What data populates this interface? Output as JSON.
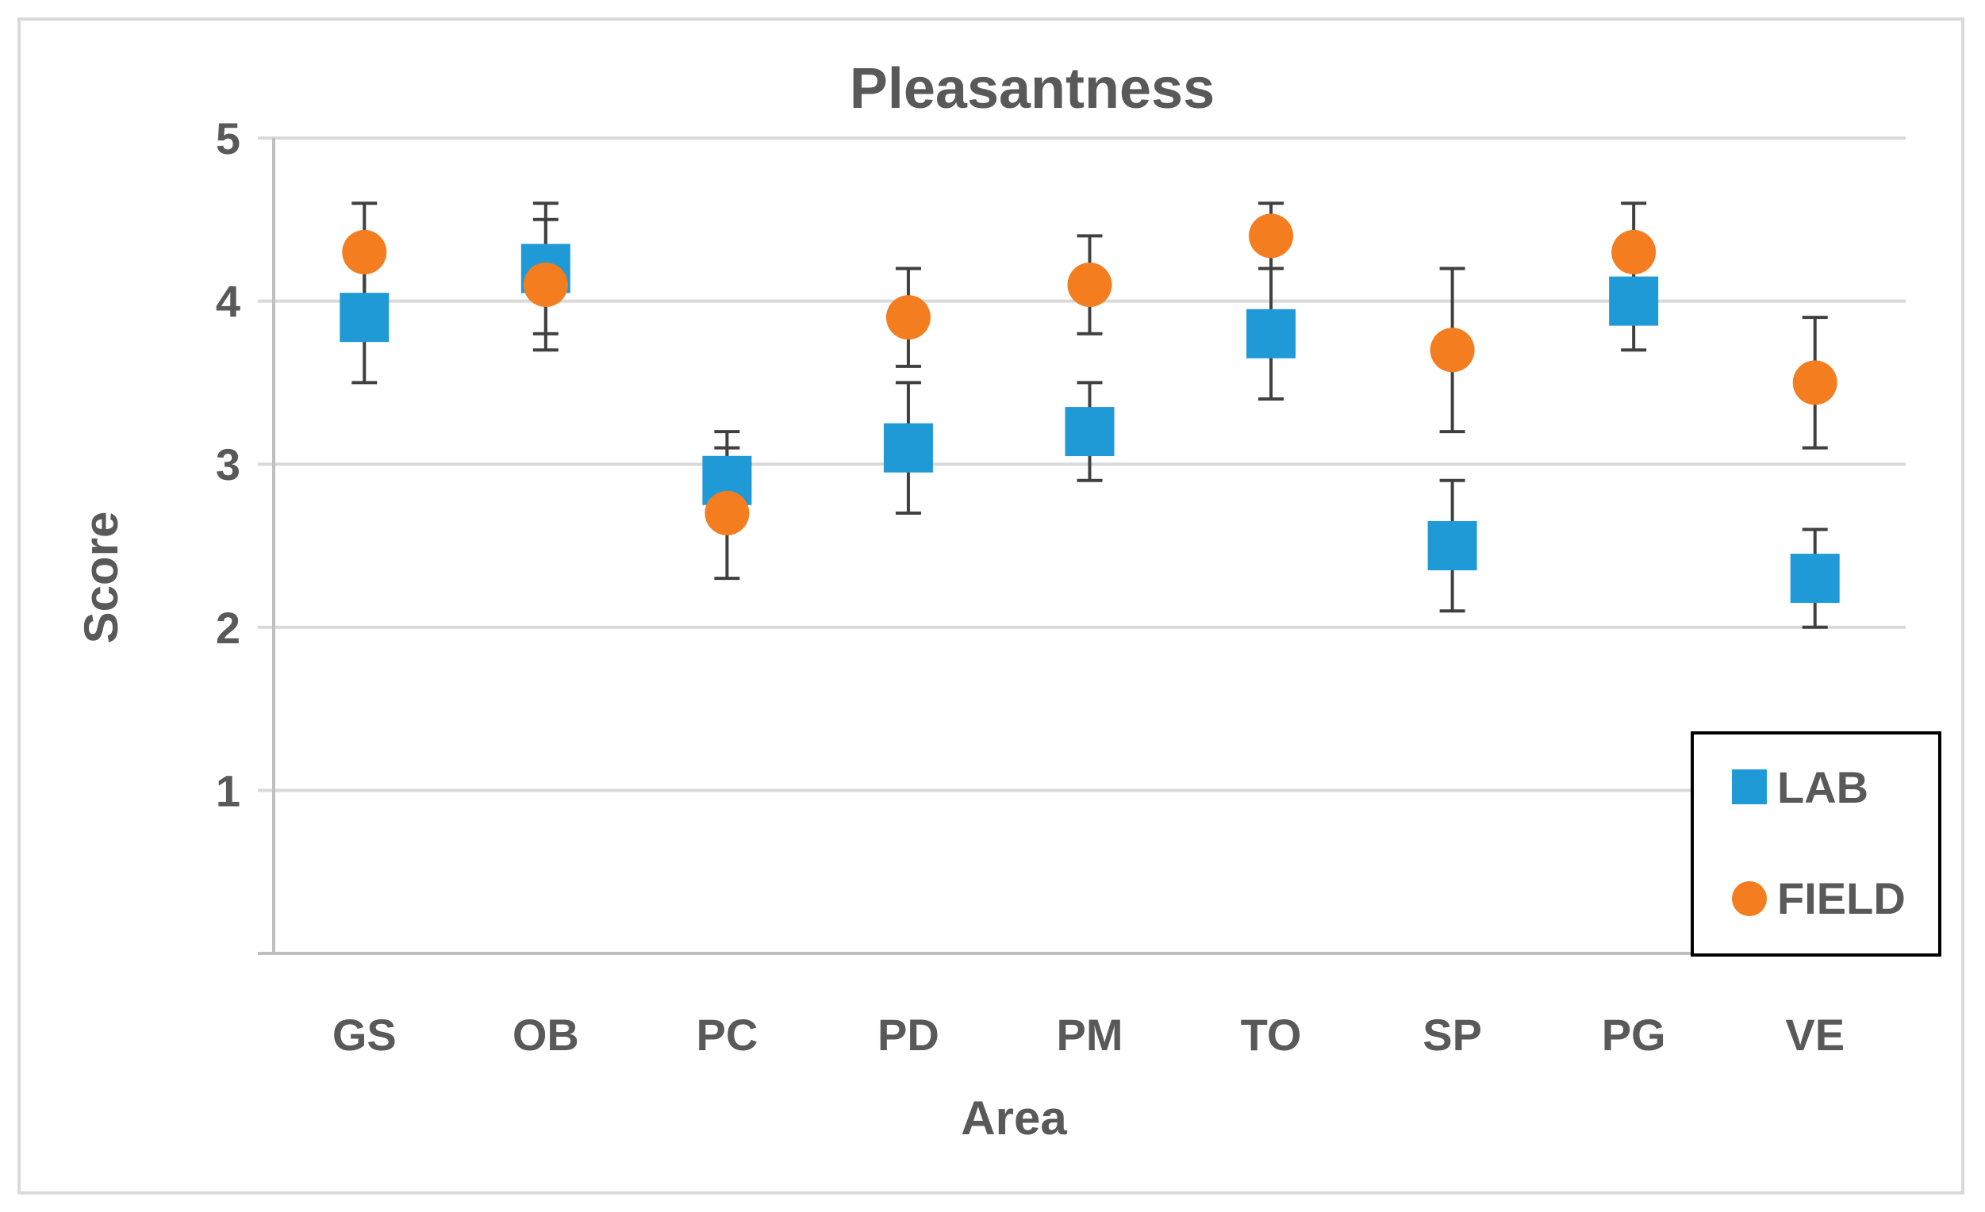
{
  "chart_data": {
    "type": "scatter",
    "title": "Pleasantness",
    "xlabel": "Area",
    "ylabel": "Score",
    "categories": [
      "GS",
      "OB",
      "PC",
      "PD",
      "PM",
      "TO",
      "SP",
      "PG",
      "VE"
    ],
    "ylim": [
      0,
      5
    ],
    "yticks": [
      1,
      2,
      3,
      4,
      5
    ],
    "grid": true,
    "legend_position": "bottom-right",
    "series": [
      {
        "name": "LAB",
        "marker": "square",
        "color": "#1f9ad6",
        "values": [
          3.9,
          4.2,
          2.9,
          3.1,
          3.2,
          3.8,
          2.5,
          4.0,
          2.3
        ],
        "err_low": [
          3.5,
          3.8,
          2.6,
          2.7,
          2.9,
          3.4,
          2.1,
          3.7,
          2.0
        ],
        "err_high": [
          4.3,
          4.6,
          3.2,
          3.5,
          3.5,
          4.2,
          2.9,
          4.3,
          2.6
        ]
      },
      {
        "name": "FIELD",
        "marker": "circle",
        "color": "#f47d20",
        "values": [
          4.3,
          4.1,
          2.7,
          3.9,
          4.1,
          4.4,
          3.7,
          4.3,
          3.5
        ],
        "err_low": [
          4.0,
          3.7,
          2.3,
          3.6,
          3.8,
          4.2,
          3.2,
          4.0,
          3.1
        ],
        "err_high": [
          4.6,
          4.5,
          3.1,
          4.2,
          4.4,
          4.6,
          4.2,
          4.6,
          3.9
        ]
      }
    ]
  }
}
